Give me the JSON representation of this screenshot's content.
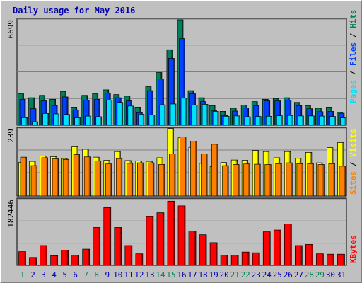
{
  "title": "Daily usage for May 2016",
  "colors": {
    "hits": "#00805c",
    "files": "#0040ff",
    "pages": "#00e0ff",
    "visits": "#ffff00",
    "sites": "#ff8000",
    "kbytes": "#ff0000",
    "weekend_day": "#00805c",
    "weekday": "#0000b0",
    "panel_bg": "#c0c0c0"
  },
  "chart_data": [
    {
      "type": "bar",
      "title": "Pages / Files / Hits",
      "xlabel": "",
      "ylabel": "6699",
      "ylim": [
        0,
        6699
      ],
      "categories": [
        "1",
        "2",
        "3",
        "4",
        "5",
        "6",
        "7",
        "8",
        "9",
        "10",
        "11",
        "12",
        "13",
        "14",
        "15",
        "16",
        "17",
        "18",
        "19",
        "20",
        "21",
        "22",
        "23",
        "24",
        "25",
        "26",
        "27",
        "28",
        "29",
        "30",
        "31"
      ],
      "series": [
        {
          "name": "Hits",
          "values": [
            2000,
            1750,
            1900,
            1650,
            2150,
            1150,
            1900,
            2000,
            2250,
            1950,
            1850,
            1150,
            2450,
            3350,
            4800,
            6699,
            2200,
            1750,
            1250,
            880,
            1080,
            1280,
            1500,
            1650,
            1700,
            1750,
            1450,
            1250,
            1080,
            1150,
            820
          ]
        },
        {
          "name": "Files",
          "values": [
            1650,
            1050,
            1550,
            1250,
            1800,
            980,
            1600,
            1650,
            2050,
            1750,
            1550,
            800,
            2200,
            2950,
            4250,
            5500,
            2000,
            1500,
            920,
            620,
            900,
            1100,
            1250,
            1550,
            1550,
            1600,
            1250,
            1050,
            860,
            880,
            760
          ]
        },
        {
          "name": "Pages",
          "values": [
            480,
            220,
            750,
            720,
            680,
            470,
            580,
            540,
            1600,
            1450,
            1220,
            700,
            650,
            1300,
            1350,
            1720,
            1290,
            1330,
            880,
            570,
            590,
            540,
            560,
            570,
            600,
            620,
            590,
            590,
            580,
            560,
            470
          ]
        }
      ]
    },
    {
      "type": "bar",
      "title": "Sites / Visits",
      "xlabel": "",
      "ylabel": "239",
      "ylim": [
        0,
        239
      ],
      "series": [
        {
          "name": "Visits",
          "values": [
            120,
            123,
            142,
            140,
            133,
            175,
            166,
            138,
            127,
            158,
            126,
            125,
            123,
            136,
            240,
            207,
            173,
            116,
            105,
            119,
            128,
            127,
            162,
            158,
            136,
            158,
            134,
            155,
            118,
            172,
            190
          ]
        },
        {
          "name": "Sites",
          "values": [
            138,
            108,
            136,
            132,
            130,
            147,
            139,
            125,
            114,
            133,
            116,
            118,
            118,
            112,
            150,
            210,
            195,
            150,
            184,
            108,
            112,
            114,
            113,
            112,
            115,
            118,
            115,
            115,
            112,
            115,
            106
          ]
        }
      ]
    },
    {
      "type": "bar",
      "title": "KBytes",
      "xlabel": "",
      "ylabel": "182446",
      "ylim": [
        0,
        182446
      ],
      "series": [
        {
          "name": "KBytes",
          "values": [
            38000,
            22000,
            55000,
            27000,
            42000,
            28000,
            45000,
            105000,
            160000,
            105000,
            55000,
            32000,
            135000,
            146000,
            178000,
            165000,
            95000,
            85000,
            63000,
            28000,
            28000,
            37000,
            35000,
            93000,
            98000,
            115000,
            55000,
            58000,
            32000,
            31000,
            31000
          ]
        }
      ]
    }
  ]
}
